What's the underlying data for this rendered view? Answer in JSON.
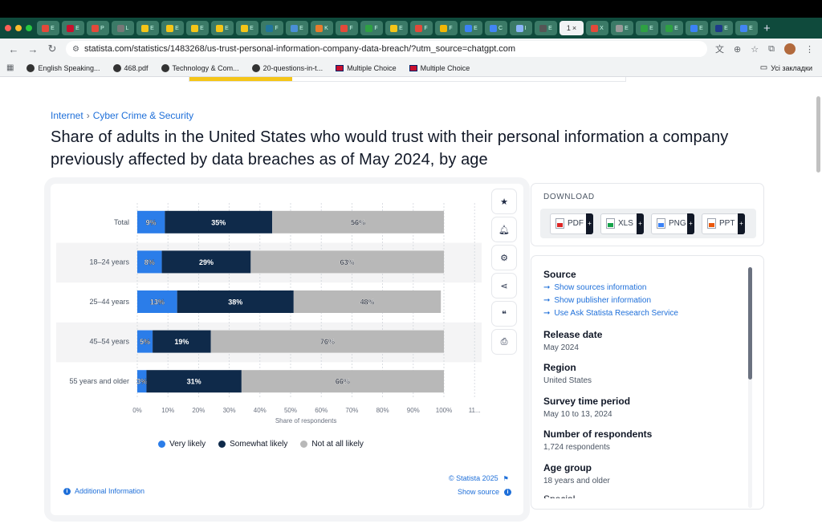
{
  "browser": {
    "tabs": [
      {
        "fav": "#e4493a",
        "txt": "E"
      },
      {
        "fav": "#c8102e",
        "txt": "E"
      },
      {
        "fav": "#e4493a",
        "txt": "P"
      },
      {
        "fav": "#777",
        "txt": "L"
      },
      {
        "fav": "#f5c518",
        "txt": "E"
      },
      {
        "fav": "#f5c518",
        "txt": "E"
      },
      {
        "fav": "#f5c518",
        "txt": "E"
      },
      {
        "fav": "#f5c518",
        "txt": "E"
      },
      {
        "fav": "#f5c518",
        "txt": "E"
      },
      {
        "fav": "#21759b",
        "txt": "F"
      },
      {
        "fav": "#4a8fd6",
        "txt": "E"
      },
      {
        "fav": "#e87c2c",
        "txt": "K"
      },
      {
        "fav": "#e4493a",
        "txt": "F"
      },
      {
        "fav": "#2ea043",
        "txt": "F"
      },
      {
        "fav": "#f5c518",
        "txt": "E"
      },
      {
        "fav": "#e4493a",
        "txt": "F"
      },
      {
        "fav": "#f2b705",
        "txt": "F"
      },
      {
        "fav": "#3b82f6",
        "txt": "E"
      },
      {
        "fav": "#4285f4",
        "txt": "C"
      },
      {
        "fav": "#8ab4f8",
        "txt": "I"
      },
      {
        "fav": "#555",
        "txt": "E"
      }
    ],
    "active_tab": {
      "label": "1",
      "close": "×"
    },
    "tabs_after": [
      {
        "fav": "#e4493a",
        "txt": "X"
      },
      {
        "fav": "#999",
        "txt": "E"
      },
      {
        "fav": "#2ea043",
        "txt": "E"
      },
      {
        "fav": "#2ea043",
        "txt": "E"
      },
      {
        "fav": "#3b82f6",
        "txt": "E"
      },
      {
        "fav": "#1e3a8a",
        "txt": "E"
      },
      {
        "fav": "#4285f4",
        "txt": "E"
      }
    ],
    "new_tab": "+",
    "url": "statista.com/statistics/1483268/us-trust-personal-information-company-data-breach/?utm_source=chatgpt.com",
    "bookmarks": [
      "English Speaking...",
      "468.pdf",
      "Technology & Com...",
      "20-questions-in-t...",
      "Multiple Choice",
      "Multiple Choice"
    ],
    "bookmarks_right": "Усі закладки"
  },
  "page": {
    "breadcrumb": {
      "first": "Internet",
      "sep": "›",
      "second": "Cyber Crime & Security"
    },
    "title": "Share of adults in the United States who would trust with their personal information a company previously affected by data breaches as of May 2024, by age"
  },
  "chart_data": {
    "type": "bar",
    "orientation": "horizontal",
    "stacked": true,
    "categories": [
      "Total",
      "18-24 years",
      "25-44 years",
      "45-54 years",
      "55 years and older"
    ],
    "series": [
      {
        "name": "Very likely",
        "color": "#2b7de9",
        "values": [
          9,
          8,
          13,
          5,
          3
        ],
        "labels": [
          "9%",
          "8%",
          "13%",
          "5%",
          "3%"
        ]
      },
      {
        "name": "Somewhat likely",
        "color": "#0f2a4a",
        "values": [
          35,
          29,
          38,
          19,
          31
        ],
        "labels": [
          "35%",
          "29%",
          "38%",
          "19%",
          "31%"
        ]
      },
      {
        "name": "Not at all likely",
        "color": "#b8b8b8",
        "values": [
          56,
          63,
          48,
          76,
          66
        ],
        "labels": [
          "56%",
          "63%",
          "48%",
          "76%",
          "66%"
        ]
      }
    ],
    "x_ticks": [
      "0%",
      "10%",
      "20%",
      "30%",
      "40%",
      "50%",
      "60%",
      "70%",
      "80%",
      "90%",
      "100%",
      "11..."
    ],
    "xlabel": "Share of respondents",
    "xlim": [
      0,
      110
    ],
    "grid": true,
    "legend": "bottom-center"
  },
  "chart_footer": {
    "copyright": "© Statista 2025",
    "show_source": "Show source",
    "additional_info": "Additional Information"
  },
  "download": {
    "heading": "DOWNLOAD",
    "formats": [
      {
        "label": "PDF",
        "color": "#dc2626"
      },
      {
        "label": "XLS",
        "color": "#16a34a"
      },
      {
        "label": "PNG",
        "color": "#3b82f6"
      },
      {
        "label": "PPT",
        "color": "#ea580c"
      }
    ],
    "plus": "+"
  },
  "info": {
    "source_title": "Source",
    "source_links": [
      "Show sources information",
      "Show publisher information",
      "Use Ask Statista Research Service"
    ],
    "release_title": "Release date",
    "release_value": "May 2024",
    "region_title": "Region",
    "region_value": "United States",
    "survey_title": "Survey time period",
    "survey_value": "May 10 to 13, 2024",
    "respondents_title": "Number of respondents",
    "respondents_value": "1,724 respondents",
    "age_title": "Age group",
    "age_value": "18 years and older",
    "next_title": "Special properties"
  }
}
